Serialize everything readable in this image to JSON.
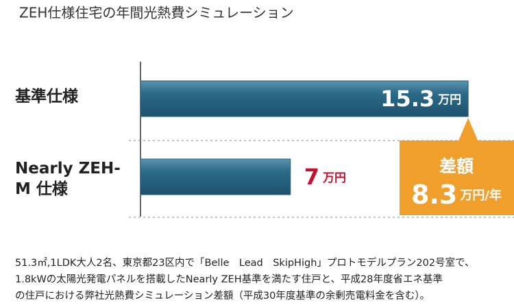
{
  "chart_data": {
    "type": "bar",
    "orientation": "horizontal",
    "title": "ZEH仕様住宅の年間光熱費シミュレーション",
    "categories": [
      "基準仕様",
      "Nearly ZEH-M 仕様"
    ],
    "values": [
      15.3,
      7
    ],
    "unit": "万円",
    "color": "#23607e",
    "label_colors": [
      "#ffffff",
      "#c8102e"
    ],
    "xlim": [
      0,
      16
    ],
    "difference": {
      "label": "差額",
      "value": 8.3,
      "unit": "万円/年",
      "color": "#f0a02a"
    },
    "notes": [
      "51.3㎡,1LDK大人2名、東京都23区内で「Belle　Lead　SkipHigh」プロトモデルプラン202号室で、",
      "1.8kWの太陽光発電パネルを搭載したNearly ZEH基準を満たす住戸と、平成28年度省エネ基準",
      "の住戸における弊社光熱費シミュレーション差額（平成30年度基準の余剰売電料金を含む）。"
    ]
  }
}
